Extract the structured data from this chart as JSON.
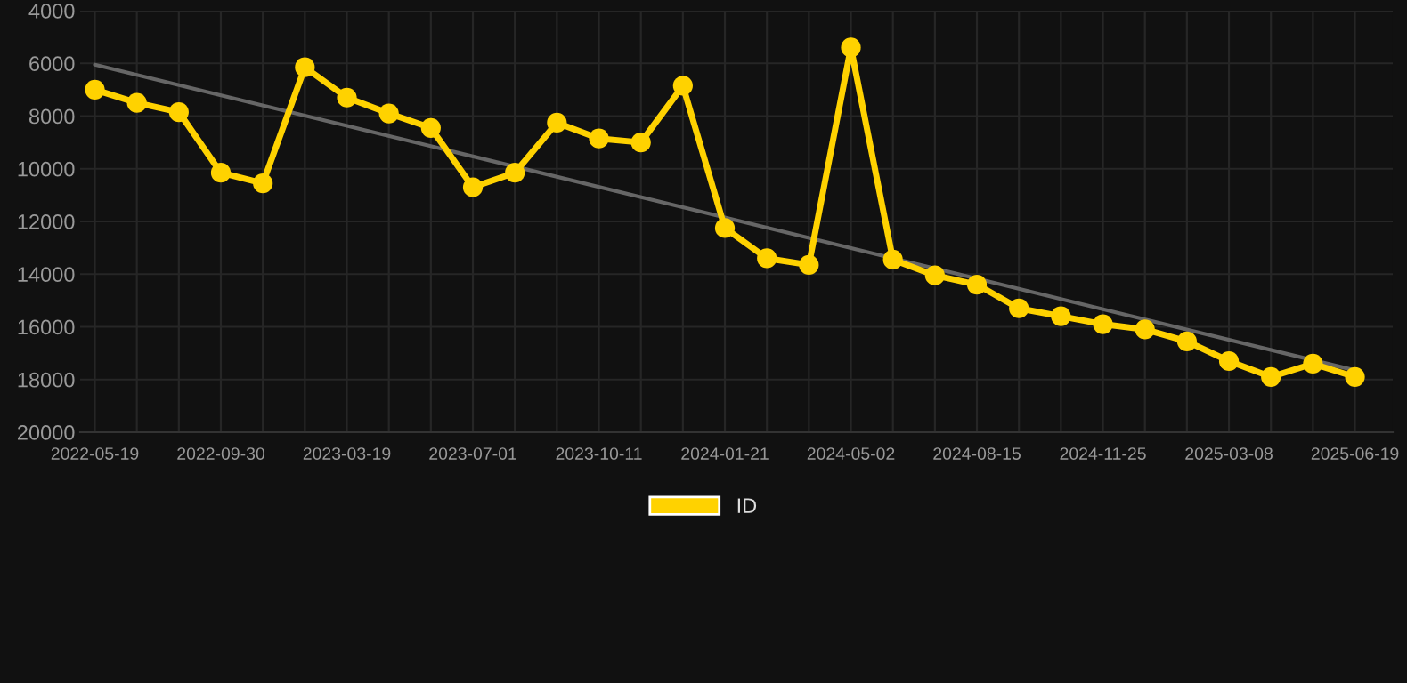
{
  "chart_data": {
    "type": "line",
    "categories": [
      "2022-05-19",
      null,
      null,
      "2022-09-30",
      null,
      null,
      "2023-03-19",
      null,
      null,
      "2023-07-01",
      null,
      null,
      "2023-10-11",
      null,
      null,
      "2024-01-21",
      null,
      null,
      "2024-05-02",
      null,
      null,
      "2024-08-15",
      null,
      null,
      "2024-11-25",
      null,
      null,
      "2025-03-08",
      null,
      null,
      "2025-06-19"
    ],
    "series": [
      {
        "name": "ID",
        "color": "#ffd200",
        "marker": "circle",
        "values": [
          7000,
          7500,
          7850,
          10150,
          10550,
          6150,
          7300,
          7900,
          8450,
          10700,
          10150,
          8250,
          8850,
          9000,
          6850,
          12250,
          13400,
          13650,
          5400,
          13450,
          14050,
          14400,
          15300,
          15600,
          15900,
          16100,
          16550,
          17300,
          17900,
          17400,
          17900
        ]
      },
      {
        "color": "#666666",
        "marker": "none",
        "values": [
          6050,
          null,
          null,
          null,
          null,
          null,
          null,
          null,
          null,
          null,
          null,
          null,
          null,
          null,
          null,
          null,
          null,
          null,
          null,
          null,
          null,
          null,
          null,
          null,
          null,
          null,
          null,
          null,
          null,
          null,
          17650
        ]
      }
    ],
    "ylim": [
      20000,
      4000
    ],
    "yticks": [
      4000,
      6000,
      8000,
      10000,
      12000,
      14000,
      16000,
      18000,
      20000
    ],
    "grid": true,
    "legend": "bottom",
    "line_style": "solid"
  }
}
